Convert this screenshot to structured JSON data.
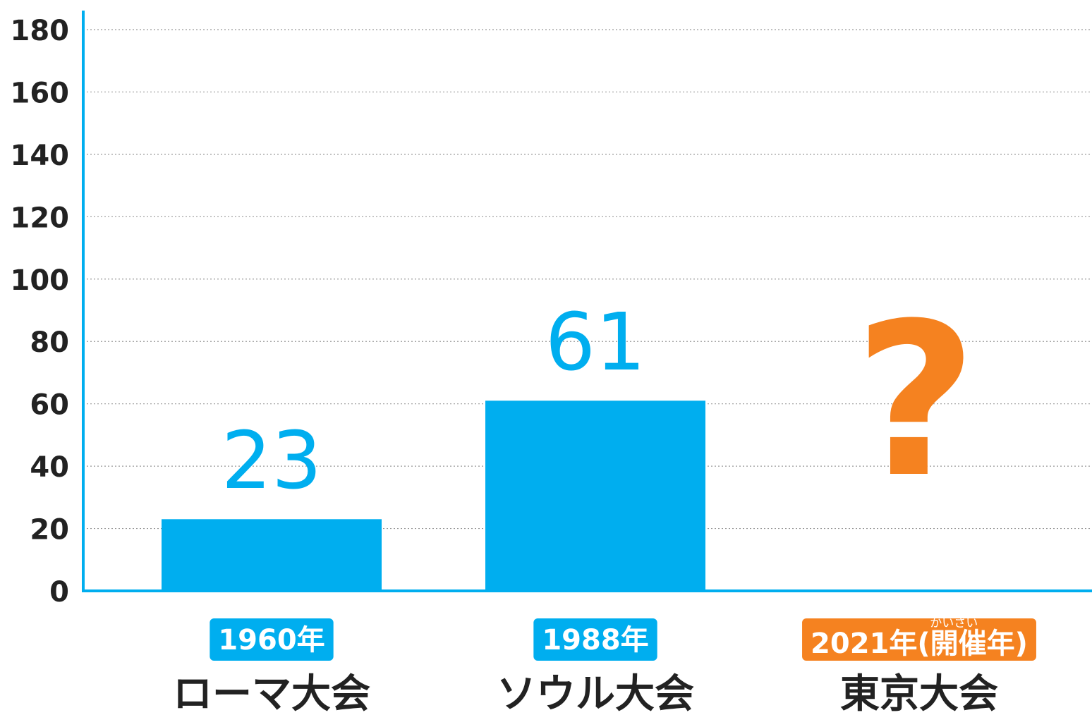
{
  "chart_data": {
    "type": "bar",
    "categories": [
      "ローマ大会",
      "ソウル大会",
      "東京大会"
    ],
    "year_labels": [
      "1960年",
      "1988年",
      "2021年(開催年)"
    ],
    "year_ruby": "かいさい",
    "values": [
      23,
      61,
      null
    ],
    "annotation": "?",
    "color": "#00aeef",
    "category_colors": [
      "#00aeef",
      "#00aeef",
      "#f58220"
    ],
    "ylim": [
      0,
      180
    ],
    "yticks": [
      0,
      20,
      40,
      60,
      80,
      100,
      120,
      140,
      160,
      180
    ],
    "grid": true
  }
}
